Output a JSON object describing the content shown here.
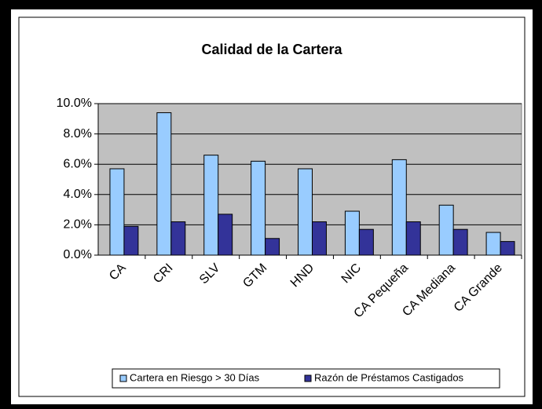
{
  "chart_data": {
    "type": "bar",
    "title": "Calidad de la Cartera",
    "categories": [
      "CA",
      "CRI",
      "SLV",
      "GTM",
      "HND",
      "NIC",
      "CA Pequeña",
      "CA Mediana",
      "CA Grande"
    ],
    "series": [
      {
        "name": "Cartera en Riesgo > 30 Días",
        "color": "#99ccff",
        "values": [
          5.7,
          9.4,
          6.6,
          6.2,
          5.7,
          2.9,
          6.3,
          3.3,
          1.5
        ]
      },
      {
        "name": "Razón de Préstamos Castigados",
        "color": "#333399",
        "values": [
          1.9,
          2.2,
          2.7,
          1.1,
          2.2,
          1.7,
          2.2,
          1.7,
          0.9
        ]
      }
    ],
    "ylim": [
      0,
      10
    ],
    "yticks": [
      {
        "value": 0,
        "label": "0.0%"
      },
      {
        "value": 2,
        "label": "2.0%"
      },
      {
        "value": 4,
        "label": "4.0%"
      },
      {
        "value": 6,
        "label": "6.0%"
      },
      {
        "value": 8,
        "label": "8.0%"
      },
      {
        "value": 10,
        "label": "10.0%"
      }
    ],
    "grid": true,
    "legend": "bottom"
  }
}
